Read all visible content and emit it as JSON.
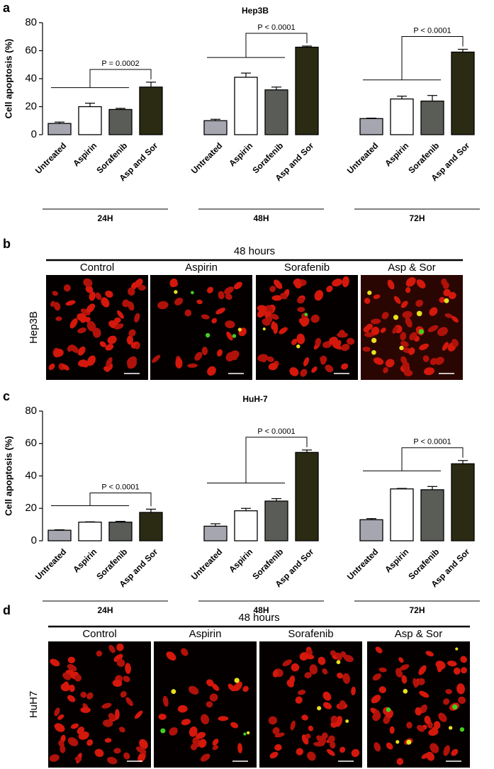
{
  "chart_data": [
    {
      "type": "bar",
      "panel": "a",
      "title": "Hep3B",
      "y_label": "Cell apoptosis (%)",
      "ylim": [
        0,
        80
      ],
      "yticks": [
        0,
        20,
        40,
        60,
        80
      ],
      "colors": [
        "#a6a6b0",
        "#ffffff",
        "#5a5c58",
        "#2b2b14"
      ],
      "groups": [
        {
          "label": "24H",
          "p_label": "P = 0.0002",
          "categories": [
            "Untreated",
            "Aspirin",
            "Sorafenib",
            "Asp and Sor"
          ],
          "values": [
            8,
            20,
            18,
            34
          ],
          "errors": [
            1,
            2.5,
            0.8,
            3.5
          ]
        },
        {
          "label": "48H",
          "p_label": "P < 0.0001",
          "categories": [
            "Untreated",
            "Aspirin",
            "Sorafenib",
            "Asp and Sor"
          ],
          "values": [
            10,
            41,
            32,
            62.5
          ],
          "errors": [
            1,
            3,
            2,
            0.8
          ]
        },
        {
          "label": "72H",
          "p_label": "P < 0.0001",
          "categories": [
            "Untreated",
            "Aspirin",
            "Sorafenib",
            "Asp and Sor"
          ],
          "values": [
            11.5,
            25.5,
            24,
            59
          ],
          "errors": [
            0.3,
            2,
            4,
            2
          ]
        }
      ]
    },
    {
      "type": "bar",
      "panel": "c",
      "title": "HuH-7",
      "y_label": "Cell apoptosis (%)",
      "ylim": [
        0,
        80
      ],
      "yticks": [
        0,
        20,
        40,
        60,
        80
      ],
      "colors": [
        "#a6a6b0",
        "#ffffff",
        "#5a5c58",
        "#2b2b14"
      ],
      "groups": [
        {
          "label": "24H",
          "p_label": "P < 0.0001",
          "categories": [
            "Untreated",
            "Aspirin",
            "Sorafenib",
            "Asp and Sor"
          ],
          "values": [
            6.5,
            11.5,
            11.5,
            17.5
          ],
          "errors": [
            0.3,
            0.2,
            0.5,
            2
          ]
        },
        {
          "label": "48H",
          "p_label": "P < 0.0001",
          "categories": [
            "Untreated",
            "Aspirin",
            "Sorafenib",
            "Asp and Sor"
          ],
          "values": [
            9,
            18.5,
            24.5,
            54.5
          ],
          "errors": [
            1.5,
            1.5,
            1.5,
            1.5
          ]
        },
        {
          "label": "72H",
          "p_label": "P < 0.0001",
          "categories": [
            "Untreated",
            "Aspirin",
            "Sorafenib",
            "Asp and Sor"
          ],
          "values": [
            13,
            32,
            31.5,
            47.5
          ],
          "errors": [
            0.7,
            0.3,
            2,
            2
          ]
        }
      ]
    }
  ],
  "image_panels": [
    {
      "panel": "b",
      "title": "48 hours",
      "row_label": "Hep3B",
      "columns": [
        "Control",
        "Aspirin",
        "Sorafenib",
        "Asp & Sor"
      ]
    },
    {
      "panel": "d",
      "title": "48 hours",
      "row_label": "HuH7",
      "columns": [
        "Control",
        "Aspirin",
        "Sorafenib",
        "Asp & Sor"
      ]
    }
  ]
}
